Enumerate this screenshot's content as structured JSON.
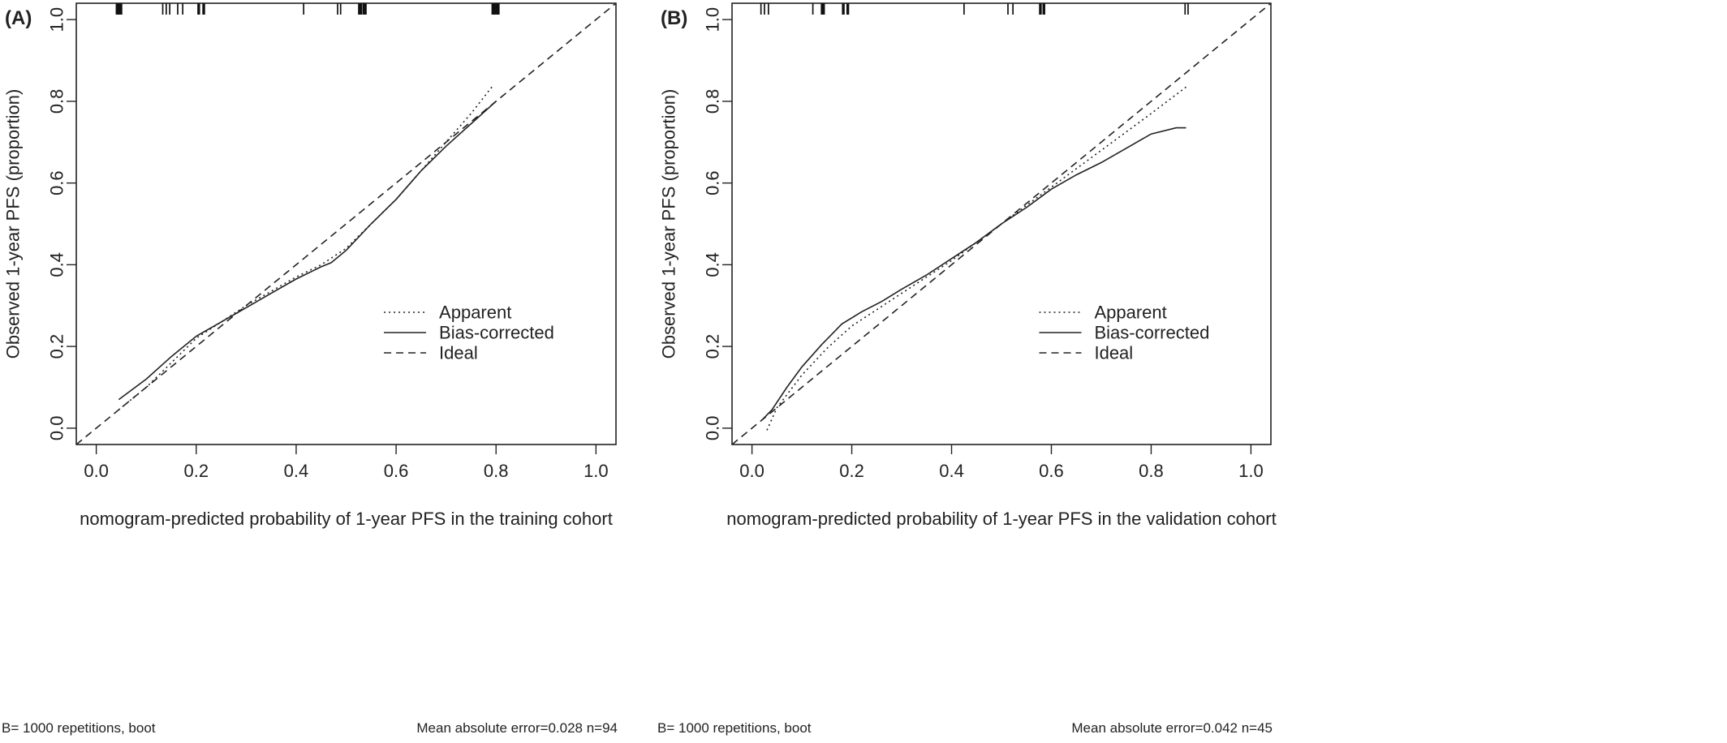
{
  "chart_data": [
    {
      "type": "line",
      "panel_label": "(A)",
      "xlabel": "nomogram-predicted probability of 1-year PFS in the training cohort",
      "ylabel": "Observed 1-year PFS (proportion)",
      "xlim": [
        -0.04,
        1.04
      ],
      "ylim": [
        -0.04,
        1.04
      ],
      "xticks": [
        "0.0",
        "0.2",
        "0.4",
        "0.6",
        "0.8",
        "1.0"
      ],
      "yticks": [
        "0.0",
        "0.2",
        "0.4",
        "0.6",
        "0.8",
        "1.0"
      ],
      "grid": false,
      "legend_position": "bottom-right",
      "series": [
        {
          "name": "Apparent",
          "line_style": "dotted",
          "x": [
            0.045,
            0.1,
            0.15,
            0.2,
            0.25,
            0.3,
            0.35,
            0.4,
            0.45,
            0.5,
            0.55,
            0.6,
            0.65,
            0.7,
            0.75,
            0.795
          ],
          "y": [
            0.045,
            0.1,
            0.16,
            0.22,
            0.26,
            0.3,
            0.335,
            0.37,
            0.4,
            0.44,
            0.5,
            0.56,
            0.63,
            0.7,
            0.77,
            0.84
          ]
        },
        {
          "name": "Bias-corrected",
          "line_style": "solid",
          "x": [
            0.045,
            0.1,
            0.15,
            0.2,
            0.25,
            0.3,
            0.35,
            0.4,
            0.45,
            0.47,
            0.5,
            0.55,
            0.6,
            0.65,
            0.7,
            0.75,
            0.8
          ],
          "y": [
            0.07,
            0.12,
            0.175,
            0.225,
            0.26,
            0.295,
            0.33,
            0.365,
            0.395,
            0.405,
            0.435,
            0.5,
            0.56,
            0.63,
            0.69,
            0.745,
            0.8
          ]
        },
        {
          "name": "Ideal",
          "line_style": "dashed",
          "x": [
            -0.04,
            1.04
          ],
          "y": [
            -0.04,
            1.04
          ]
        }
      ],
      "rug": [
        {
          "x": 0.043,
          "w": 3
        },
        {
          "x": 0.048,
          "w": 3
        },
        {
          "x": 0.133,
          "w": 1
        },
        {
          "x": 0.14,
          "w": 1
        },
        {
          "x": 0.147,
          "w": 1
        },
        {
          "x": 0.163,
          "w": 1
        },
        {
          "x": 0.173,
          "w": 1
        },
        {
          "x": 0.205,
          "w": 2
        },
        {
          "x": 0.215,
          "w": 2
        },
        {
          "x": 0.415,
          "w": 1
        },
        {
          "x": 0.483,
          "w": 1
        },
        {
          "x": 0.489,
          "w": 1
        },
        {
          "x": 0.528,
          "w": 3
        },
        {
          "x": 0.537,
          "w": 3
        },
        {
          "x": 0.795,
          "w": 3
        },
        {
          "x": 0.803,
          "w": 3
        }
      ],
      "footnote_left": "B= 1000 repetitions, boot",
      "footnote_right": "Mean absolute error=0.028 n=94"
    },
    {
      "type": "line",
      "panel_label": "(B)",
      "xlabel": "nomogram-predicted probability of 1-year PFS in the validation cohort",
      "ylabel": "Observed 1-year PFS (proportion)",
      "xlim": [
        -0.04,
        1.04
      ],
      "ylim": [
        -0.04,
        1.04
      ],
      "xticks": [
        "0.0",
        "0.2",
        "0.4",
        "0.6",
        "0.8",
        "1.0"
      ],
      "yticks": [
        "0.0",
        "0.2",
        "0.4",
        "0.6",
        "0.8",
        "1.0"
      ],
      "grid": false,
      "legend_position": "bottom-right",
      "series": [
        {
          "name": "Apparent",
          "line_style": "dotted",
          "x": [
            0.03,
            0.05,
            0.1,
            0.15,
            0.2,
            0.25,
            0.3,
            0.35,
            0.4,
            0.45,
            0.5,
            0.55,
            0.6,
            0.65,
            0.7,
            0.75,
            0.8,
            0.87
          ],
          "y": [
            -0.005,
            0.05,
            0.13,
            0.195,
            0.25,
            0.29,
            0.33,
            0.37,
            0.41,
            0.455,
            0.5,
            0.545,
            0.59,
            0.635,
            0.68,
            0.725,
            0.77,
            0.835
          ]
        },
        {
          "name": "Bias-corrected",
          "line_style": "solid",
          "x": [
            0.02,
            0.04,
            0.07,
            0.1,
            0.14,
            0.18,
            0.22,
            0.26,
            0.3,
            0.35,
            0.4,
            0.45,
            0.5,
            0.55,
            0.6,
            0.65,
            0.7,
            0.75,
            0.8,
            0.85,
            0.87
          ],
          "y": [
            0.02,
            0.045,
            0.1,
            0.15,
            0.205,
            0.255,
            0.285,
            0.31,
            0.34,
            0.375,
            0.415,
            0.455,
            0.5,
            0.54,
            0.585,
            0.62,
            0.65,
            0.685,
            0.72,
            0.735,
            0.735
          ]
        },
        {
          "name": "Ideal",
          "line_style": "dashed",
          "x": [
            -0.04,
            1.04
          ],
          "y": [
            -0.04,
            1.04
          ]
        }
      ],
      "rug": [
        {
          "x": 0.018,
          "w": 1
        },
        {
          "x": 0.025,
          "w": 1
        },
        {
          "x": 0.033,
          "w": 1
        },
        {
          "x": 0.122,
          "w": 1
        },
        {
          "x": 0.142,
          "w": 3
        },
        {
          "x": 0.183,
          "w": 2
        },
        {
          "x": 0.192,
          "w": 2
        },
        {
          "x": 0.425,
          "w": 1
        },
        {
          "x": 0.513,
          "w": 1
        },
        {
          "x": 0.523,
          "w": 1
        },
        {
          "x": 0.578,
          "w": 2
        },
        {
          "x": 0.585,
          "w": 2
        },
        {
          "x": 0.868,
          "w": 1
        },
        {
          "x": 0.874,
          "w": 1
        }
      ],
      "footnote_left": "B= 1000 repetitions, boot",
      "footnote_right": "Mean absolute error=0.042 n=45"
    }
  ]
}
